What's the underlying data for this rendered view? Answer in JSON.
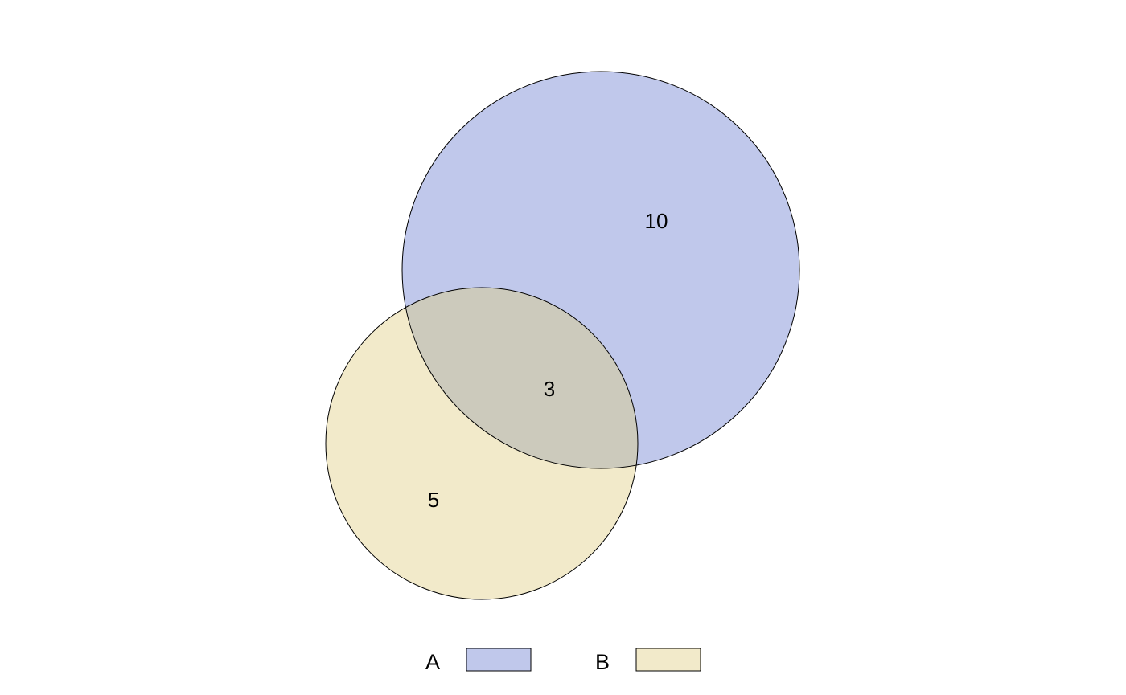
{
  "diagram": {
    "type": "venn",
    "sets": [
      {
        "name": "A",
        "color": "#C0C8EB"
      },
      {
        "name": "B",
        "color": "#F2EACA"
      }
    ],
    "intersection_color": "#CCCABC",
    "counts": {
      "a_only": "10",
      "intersection": "3",
      "b_only": "5"
    }
  },
  "legend": {
    "items": [
      {
        "label": "A",
        "color": "#C0C8EB"
      },
      {
        "label": "B",
        "color": "#F2EACA"
      }
    ]
  }
}
